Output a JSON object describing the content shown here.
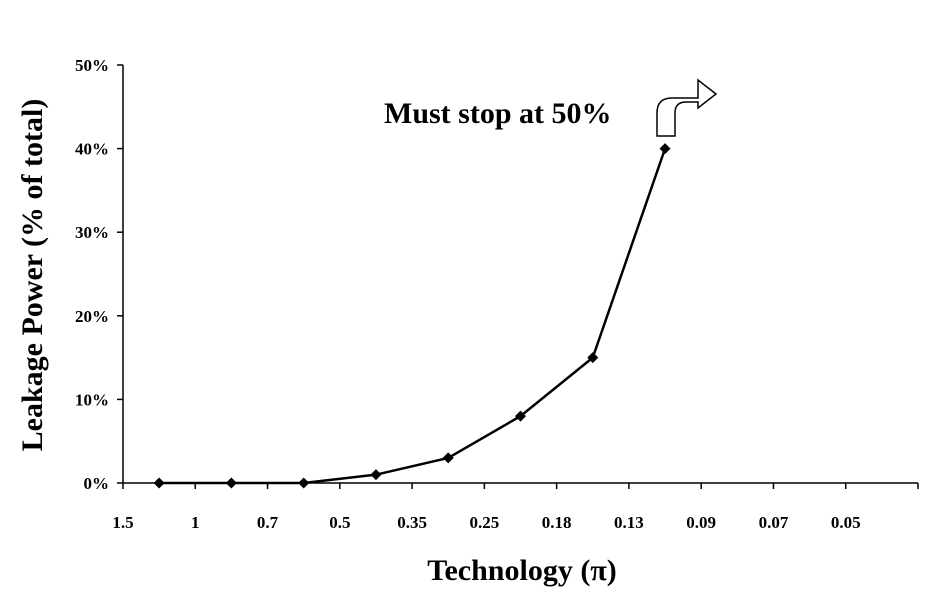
{
  "chart_data": {
    "type": "line",
    "title": "",
    "xlabel": "Technology (π)",
    "ylabel": "Leakage Power (% of total)",
    "categories": [
      "1.5",
      "1",
      "0.7",
      "0.5",
      "0.35",
      "0.25",
      "0.18",
      "0.13",
      "0.09",
      "0.07",
      "0.05"
    ],
    "y_ticks": [
      "0%",
      "10%",
      "20%",
      "30%",
      "40%",
      "50%"
    ],
    "ylim": [
      0,
      50
    ],
    "grid": false,
    "legend": "none",
    "series": [
      {
        "values": [
          0,
          0,
          0,
          1,
          3,
          8,
          15,
          40,
          null,
          null,
          null
        ],
        "color": "#000000",
        "marker": "diamond"
      }
    ],
    "annotations": [
      {
        "text": "Must stop at 50%",
        "arrow": "curved-right-arrow"
      }
    ]
  }
}
